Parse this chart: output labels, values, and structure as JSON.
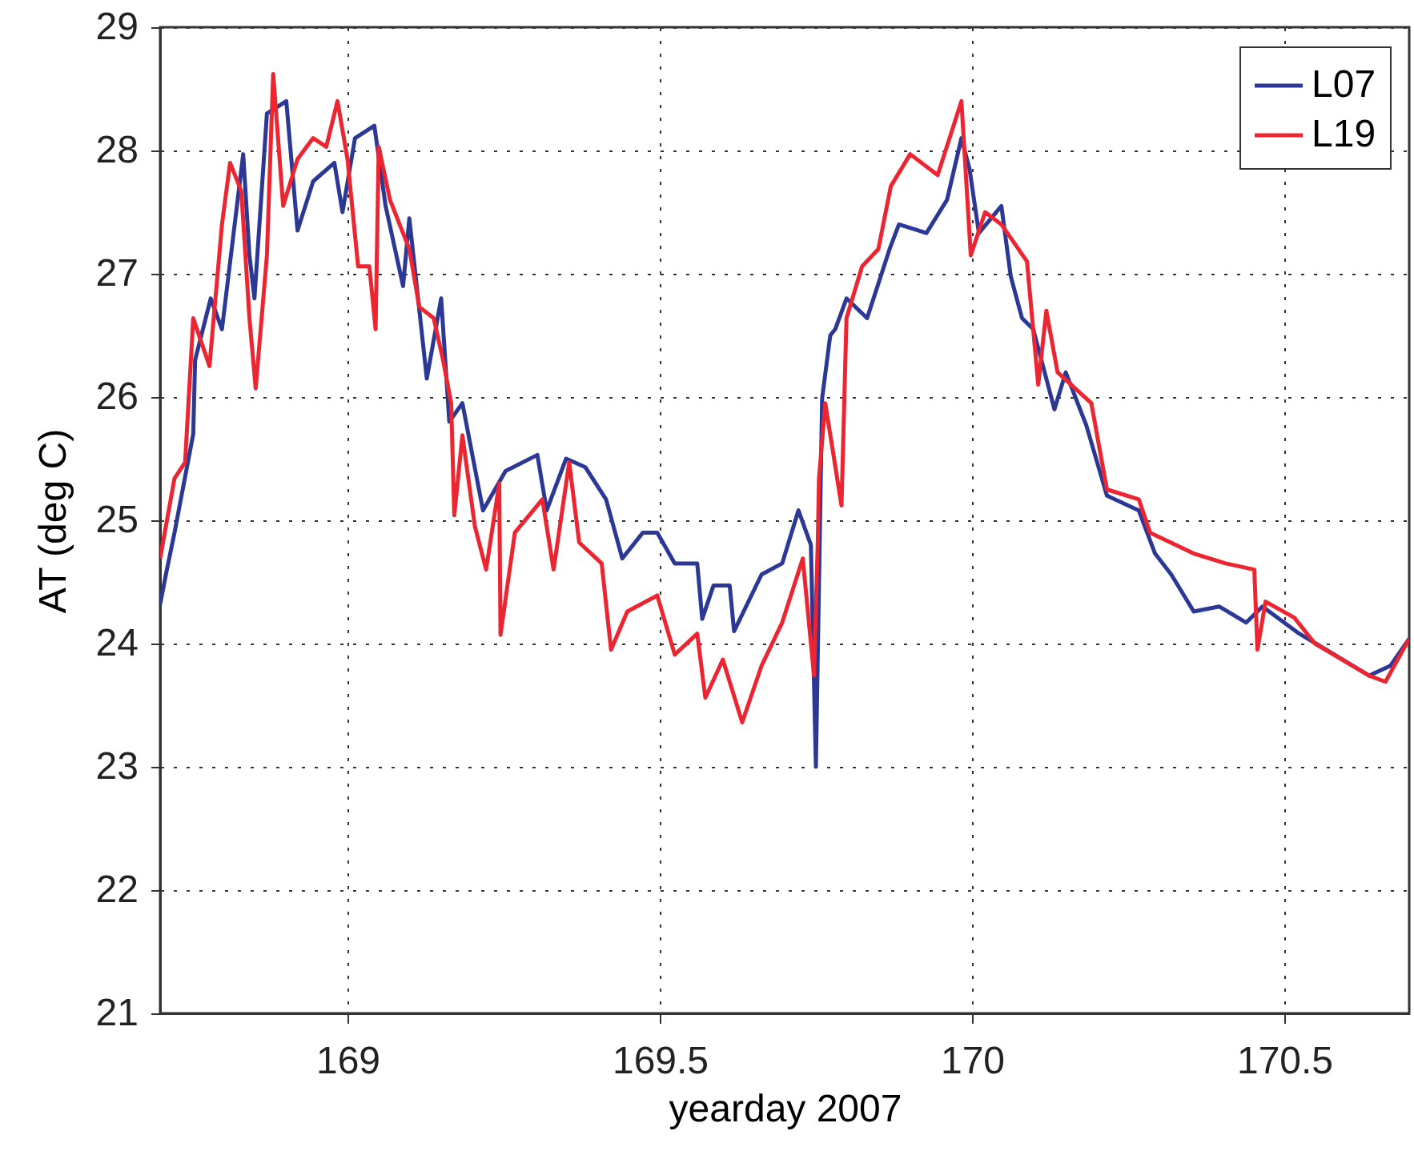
{
  "chart_data": {
    "type": "line",
    "xlabel": "yearday 2007",
    "ylabel": "AT (deg C)",
    "xlim": [
      168.7,
      170.7
    ],
    "xticks": [
      169,
      169.5,
      170,
      170.5
    ],
    "ylim": [
      21,
      29
    ],
    "yticks": [
      21,
      22,
      23,
      24,
      25,
      26,
      27,
      28,
      29
    ],
    "grid": true,
    "legend": "top right",
    "line_style": "solid",
    "marker": "none",
    "series": [
      {
        "name": "L07",
        "color": "#2b3896",
        "x": [
          168.7,
          168.71,
          168.723,
          168.753,
          168.756,
          168.781,
          168.799,
          168.833,
          168.843,
          168.851,
          168.871,
          168.902,
          168.92,
          168.945,
          168.979,
          168.992,
          169.012,
          169.043,
          169.061,
          169.089,
          169.099,
          169.127,
          169.15,
          169.163,
          169.184,
          169.217,
          169.253,
          169.304,
          169.319,
          169.35,
          169.381,
          169.414,
          169.44,
          169.473,
          169.496,
          169.524,
          169.56,
          169.568,
          169.586,
          169.612,
          169.619,
          169.663,
          169.696,
          169.722,
          169.742,
          169.75,
          169.76,
          169.773,
          169.781,
          169.799,
          169.832,
          169.868,
          169.883,
          169.927,
          169.96,
          169.983,
          169.996,
          170.011,
          170.047,
          170.062,
          170.08,
          170.098,
          170.132,
          170.15,
          170.183,
          170.216,
          170.267,
          170.293,
          170.319,
          170.355,
          170.396,
          170.439,
          170.465,
          170.524,
          170.567,
          170.636,
          170.67,
          170.7
        ],
        "values": [
          24.32,
          24.58,
          24.9,
          25.7,
          26.3,
          26.8,
          26.55,
          27.97,
          27.15,
          26.8,
          28.3,
          28.4,
          27.35,
          27.75,
          27.9,
          27.5,
          28.1,
          28.2,
          27.55,
          26.9,
          27.45,
          26.15,
          26.8,
          25.8,
          25.95,
          25.08,
          25.4,
          25.53,
          25.08,
          25.5,
          25.43,
          25.17,
          24.69,
          24.9,
          24.9,
          24.65,
          24.65,
          24.2,
          24.47,
          24.47,
          24.1,
          24.56,
          24.65,
          25.08,
          24.8,
          23.0,
          25.99,
          26.5,
          26.55,
          26.8,
          26.64,
          27.2,
          27.4,
          27.33,
          27.6,
          28.1,
          27.85,
          27.33,
          27.55,
          26.98,
          26.64,
          26.55,
          25.9,
          26.2,
          25.77,
          25.2,
          25.08,
          24.73,
          24.56,
          24.26,
          24.3,
          24.17,
          24.3,
          24.08,
          23.95,
          23.74,
          23.82,
          24.04
        ]
      },
      {
        "name": "L19",
        "color": "#ec2530",
        "x": [
          168.7,
          168.723,
          168.74,
          168.753,
          168.779,
          168.799,
          168.812,
          168.83,
          168.843,
          168.853,
          168.871,
          168.881,
          168.897,
          168.92,
          168.945,
          168.966,
          168.984,
          169.0,
          169.017,
          169.035,
          169.045,
          169.05,
          169.068,
          169.099,
          169.115,
          169.138,
          169.153,
          169.166,
          169.171,
          169.184,
          169.204,
          169.222,
          169.243,
          169.245,
          169.268,
          169.312,
          169.33,
          169.355,
          169.371,
          169.407,
          169.422,
          169.448,
          169.496,
          169.524,
          169.56,
          169.573,
          169.601,
          169.632,
          169.663,
          169.696,
          169.729,
          169.747,
          169.753,
          169.755,
          169.765,
          169.791,
          169.799,
          169.824,
          169.85,
          169.87,
          169.901,
          169.945,
          169.983,
          169.998,
          170.021,
          170.047,
          170.088,
          170.106,
          170.119,
          170.137,
          170.191,
          170.216,
          170.267,
          170.285,
          170.355,
          170.406,
          170.452,
          170.457,
          170.47,
          170.516,
          170.549,
          170.636,
          170.662,
          170.7
        ],
        "values": [
          24.69,
          25.34,
          25.47,
          26.64,
          26.25,
          27.4,
          27.9,
          27.67,
          26.64,
          26.07,
          27.15,
          28.62,
          27.55,
          27.93,
          28.1,
          28.03,
          28.4,
          27.93,
          27.06,
          27.06,
          26.55,
          28.03,
          27.6,
          27.2,
          26.73,
          26.64,
          26.3,
          25.95,
          25.04,
          25.69,
          24.95,
          24.6,
          25.3,
          24.07,
          24.9,
          25.17,
          24.6,
          25.47,
          24.82,
          24.65,
          23.95,
          24.26,
          24.39,
          23.91,
          24.08,
          23.56,
          23.87,
          23.36,
          23.82,
          24.17,
          24.69,
          23.74,
          24.82,
          25.34,
          25.95,
          25.12,
          26.64,
          27.06,
          27.2,
          27.71,
          27.97,
          27.8,
          28.4,
          27.15,
          27.5,
          27.4,
          27.1,
          26.1,
          26.7,
          26.2,
          25.95,
          25.25,
          25.17,
          24.9,
          24.73,
          24.65,
          24.6,
          23.95,
          24.34,
          24.21,
          24.0,
          23.74,
          23.69,
          24.04
        ]
      }
    ]
  }
}
